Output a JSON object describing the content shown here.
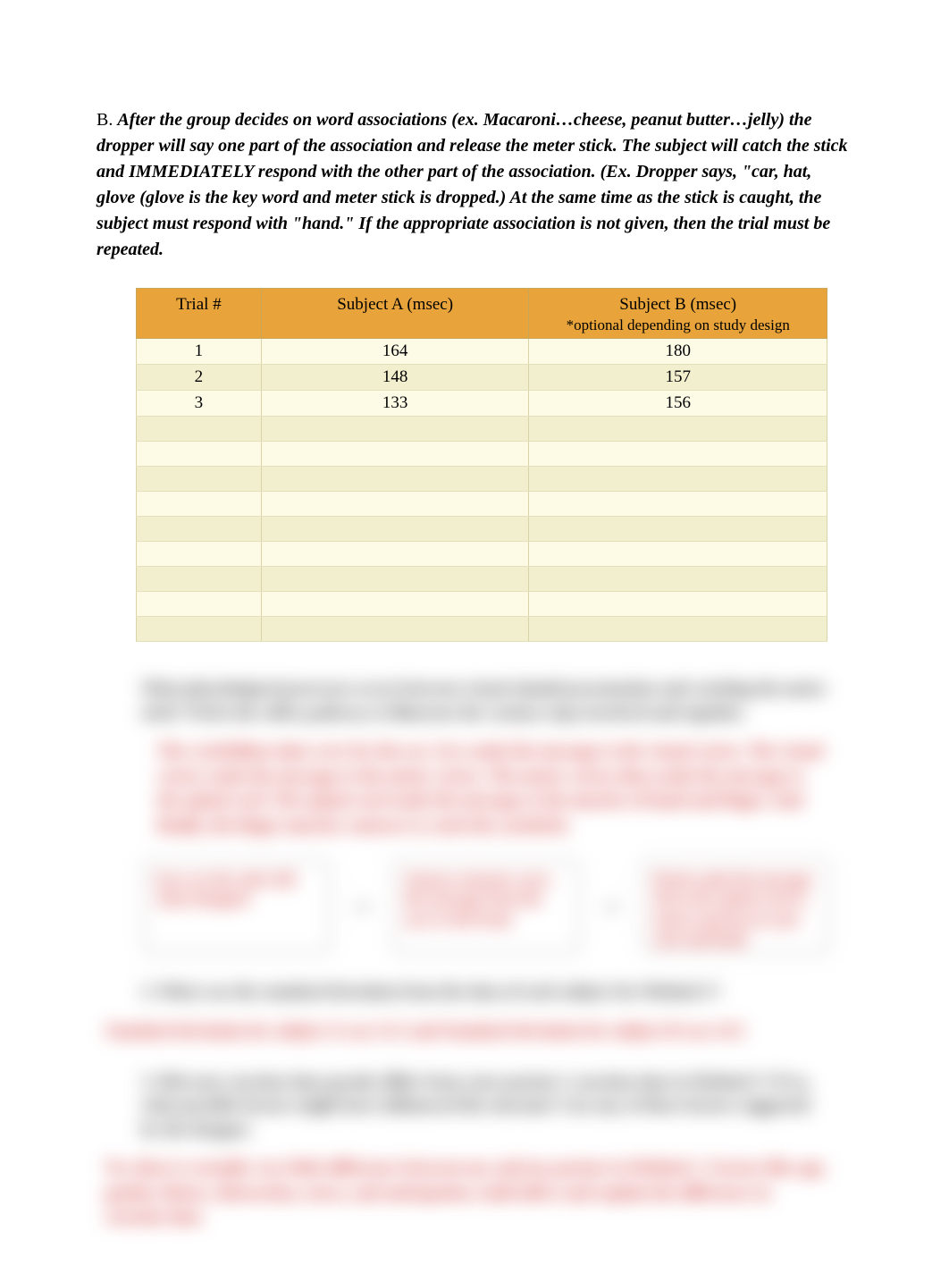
{
  "section_label": "B.  ",
  "instructions": "After the group decides on word associations (ex. Macaroni…cheese, peanut butter…jelly) the dropper will say one part of the association and release the meter stick.  The subject will catch the stick and IMMEDIATELY respond with the other part of the association.  (Ex. Dropper says, \"car, hat, glove (glove is the key word and meter stick is dropped.) At the same time as the stick is caught, the subject must respond with \"hand.\"  If the appropriate association is not given, then the trial must be repeated.",
  "table": {
    "type": "table",
    "background_color": "#f4f2d4",
    "header_bg": "#e8a43a",
    "columns": [
      {
        "label": "Trial #",
        "key": "trial"
      },
      {
        "label": "Subject A (msec)",
        "key": "a"
      },
      {
        "label": "Subject B (msec)",
        "optional_note": "*optional depending on study design",
        "key": "b"
      }
    ],
    "rows": [
      {
        "trial": "1",
        "a": "164",
        "b": "180"
      },
      {
        "trial": "2",
        "a": "148",
        "b": "157"
      },
      {
        "trial": "3",
        "a": "133",
        "b": "156"
      },
      {
        "trial": "",
        "a": "",
        "b": ""
      },
      {
        "trial": "",
        "a": "",
        "b": ""
      },
      {
        "trial": "",
        "a": "",
        "b": ""
      },
      {
        "trial": "",
        "a": "",
        "b": ""
      },
      {
        "trial": "",
        "a": "",
        "b": ""
      },
      {
        "trial": "",
        "a": "",
        "b": ""
      },
      {
        "trial": "",
        "a": "",
        "b": ""
      },
      {
        "trial": "",
        "a": "",
        "b": ""
      },
      {
        "trial": "",
        "a": "",
        "b": ""
      }
    ]
  },
  "blurred": {
    "q1": "What physiological processes occur between visual stimuli presentation and catching the meter stick? Write the reflex pathway to illustrate the various steps involved and together.",
    "a1": "The cerebellum takes over for the eye. Eye sends the message to the visual cortex. The visual cortex sends the message to the motor cortex. The motor cortex then sends the message to the spinal cord. The spinal cord sends the message to the muscles of hand and finger. And finally, the finger muscles contract to catch the yardstick.",
    "flow": {
      "box1": "Eyes see the ruler fall when dropped",
      "box2": "Sensory neurons carry the message from the eyes to the brain",
      "box3": "Brain sends the message down the spinal cord to motor neurons in your arm and hand"
    },
    "q2": "2.  What was the standard deviation from the data of each subject for Method 1?",
    "a2": "Standard deviation for subject A was 15.5 and Standard deviation for subject B was 14.5",
    "q3": "3.  Did your reaction time greatly differ from your partner's reaction time in Method 1?  If so, what possible factors might have influenced the outcome?  List any of these factors suggested by the dropper.",
    "a3": "No, there is actually very little difference between my and my partner in Method 1. Factors like age, gender, fitness, distraction, stress, and anticipation could affect and explain the difference in reaction time."
  },
  "colors": {
    "text": "#000000",
    "table_header_bg": "#e8a43a",
    "table_row_odd": "#fdfbe6",
    "table_row_even": "#f2efcf",
    "table_border": "#c8c29b",
    "red_answer": "#cc2222"
  }
}
